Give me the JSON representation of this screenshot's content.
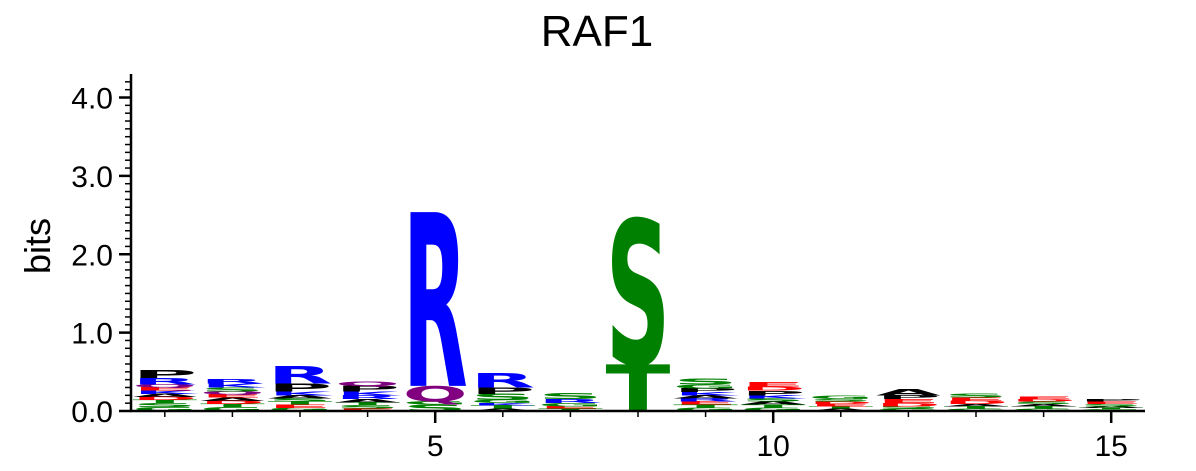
{
  "colors": {
    "A": "#000000",
    "V": "#000000",
    "L": "#000000",
    "I": "#000000",
    "P": "#000000",
    "F": "#000000",
    "W": "#000000",
    "M": "#000000",
    "R": "#0000ff",
    "K": "#0000ff",
    "H": "#0000ff",
    "S": "#008000",
    "T": "#008000",
    "G": "#008000",
    "C": "#008000",
    "Y": "#008000",
    "Q": "#800080",
    "N": "#800080",
    "D": "#ff0000",
    "E": "#ff0000"
  },
  "chart_data": {
    "type": "sequence-logo",
    "title": "RAF1",
    "ylabel": "bits",
    "xlabel": "",
    "ylim": [
      0,
      4.3
    ],
    "xlim": [
      0.5,
      15.5
    ],
    "x_ticks": [
      5,
      10,
      15
    ],
    "y_ticks": [
      "0.0",
      "1.0",
      "2.0",
      "3.0",
      "4.0"
    ],
    "y_tick_values": [
      0,
      1,
      2,
      3,
      4
    ],
    "positions": [
      {
        "pos": 1,
        "stack": [
          [
            "G",
            0.05
          ],
          [
            "S",
            0.05
          ],
          [
            "T",
            0.04
          ],
          [
            "D",
            0.04
          ],
          [
            "A",
            0.04
          ],
          [
            "K",
            0.04
          ],
          [
            "E",
            0.04
          ],
          [
            "Q",
            0.04
          ],
          [
            "R",
            0.08
          ],
          [
            "P",
            0.1
          ]
        ]
      },
      {
        "pos": 2,
        "stack": [
          [
            "G",
            0.05
          ],
          [
            "T",
            0.04
          ],
          [
            "D",
            0.04
          ],
          [
            "A",
            0.04
          ],
          [
            "E",
            0.04
          ],
          [
            "Q",
            0.04
          ],
          [
            "S",
            0.05
          ],
          [
            "K",
            0.05
          ],
          [
            "R",
            0.06
          ]
        ]
      },
      {
        "pos": 3,
        "stack": [
          [
            "G",
            0.04
          ],
          [
            "E",
            0.04
          ],
          [
            "T",
            0.04
          ],
          [
            "S",
            0.04
          ],
          [
            "A",
            0.04
          ],
          [
            "K",
            0.05
          ],
          [
            "P",
            0.1
          ],
          [
            "R",
            0.22
          ]
        ]
      },
      {
        "pos": 4,
        "stack": [
          [
            "E",
            0.03
          ],
          [
            "S",
            0.04
          ],
          [
            "T",
            0.04
          ],
          [
            "A",
            0.04
          ],
          [
            "R",
            0.05
          ],
          [
            "K",
            0.05
          ],
          [
            "P",
            0.07
          ],
          [
            "Q",
            0.06
          ]
        ]
      },
      {
        "pos": 5,
        "stack": [
          [
            "S",
            0.08
          ],
          [
            "G",
            0.04
          ],
          [
            "Q",
            0.2
          ],
          [
            "R",
            2.22
          ]
        ]
      },
      {
        "pos": 6,
        "stack": [
          [
            "A",
            0.03
          ],
          [
            "T",
            0.04
          ],
          [
            "K",
            0.03
          ],
          [
            "G",
            0.04
          ],
          [
            "S",
            0.08
          ],
          [
            "P",
            0.08
          ],
          [
            "R",
            0.18
          ]
        ]
      },
      {
        "pos": 7,
        "stack": [
          [
            "T",
            0.03
          ],
          [
            "E",
            0.03
          ],
          [
            "G",
            0.04
          ],
          [
            "R",
            0.05
          ],
          [
            "S",
            0.07
          ]
        ]
      },
      {
        "pos": 8,
        "stack": [
          [
            "T",
            0.6
          ],
          [
            "S",
            1.85
          ]
        ]
      },
      {
        "pos": 9,
        "stack": [
          [
            "G",
            0.04
          ],
          [
            "T",
            0.04
          ],
          [
            "E",
            0.04
          ],
          [
            "R",
            0.04
          ],
          [
            "A",
            0.04
          ],
          [
            "K",
            0.04
          ],
          [
            "P",
            0.05
          ],
          [
            "G",
            0.05
          ],
          [
            "S",
            0.07
          ]
        ]
      },
      {
        "pos": 10,
        "stack": [
          [
            "G",
            0.04
          ],
          [
            "T",
            0.04
          ],
          [
            "A",
            0.04
          ],
          [
            "S",
            0.04
          ],
          [
            "K",
            0.04
          ],
          [
            "P",
            0.06
          ],
          [
            "D",
            0.05
          ],
          [
            "E",
            0.06
          ]
        ]
      },
      {
        "pos": 11,
        "stack": [
          [
            "A",
            0.03
          ],
          [
            "T",
            0.03
          ],
          [
            "E",
            0.03
          ],
          [
            "D",
            0.03
          ],
          [
            "S",
            0.03
          ],
          [
            "G",
            0.04
          ]
        ]
      },
      {
        "pos": 12,
        "stack": [
          [
            "G",
            0.03
          ],
          [
            "S",
            0.03
          ],
          [
            "D",
            0.04
          ],
          [
            "E",
            0.05
          ],
          [
            "P",
            0.05
          ],
          [
            "A",
            0.08
          ]
        ]
      },
      {
        "pos": 13,
        "stack": [
          [
            "G",
            0.03
          ],
          [
            "T",
            0.03
          ],
          [
            "A",
            0.03
          ],
          [
            "D",
            0.04
          ],
          [
            "E",
            0.04
          ],
          [
            "S",
            0.05
          ]
        ]
      },
      {
        "pos": 14,
        "stack": [
          [
            "G",
            0.03
          ],
          [
            "T",
            0.03
          ],
          [
            "A",
            0.03
          ],
          [
            "S",
            0.03
          ],
          [
            "D",
            0.03
          ],
          [
            "E",
            0.03
          ]
        ]
      },
      {
        "pos": 15,
        "stack": [
          [
            "G",
            0.02
          ],
          [
            "T",
            0.02
          ],
          [
            "A",
            0.02
          ],
          [
            "S",
            0.03
          ],
          [
            "E",
            0.03
          ],
          [
            "P",
            0.03
          ]
        ]
      }
    ]
  }
}
